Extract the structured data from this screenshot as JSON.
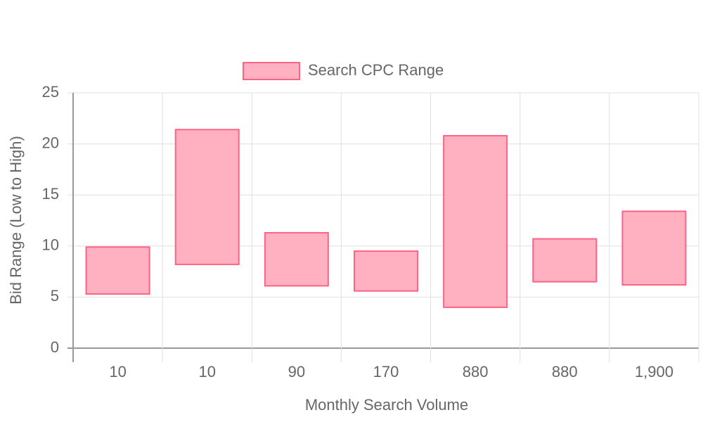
{
  "chart_data": {
    "type": "floating-bar",
    "x_label": "Monthly Search Volume",
    "y_label": "Bid Range (Low to High)",
    "categories": [
      "10",
      "10",
      "90",
      "170",
      "880",
      "880",
      "1,900"
    ],
    "series": [
      {
        "name": "Search CPC Range",
        "color": "#ff6384",
        "fill": "#ffb1c1",
        "values": [
          [
            5.3,
            9.9
          ],
          [
            8.2,
            21.4
          ],
          [
            6.1,
            11.3
          ],
          [
            5.6,
            9.5
          ],
          [
            4.0,
            20.8
          ],
          [
            6.5,
            10.7
          ],
          [
            6.2,
            13.4
          ]
        ]
      }
    ],
    "ylim": [
      0,
      25
    ],
    "yticks": [
      0,
      5,
      10,
      15,
      20,
      25
    ],
    "grid": true,
    "legend": "top"
  }
}
